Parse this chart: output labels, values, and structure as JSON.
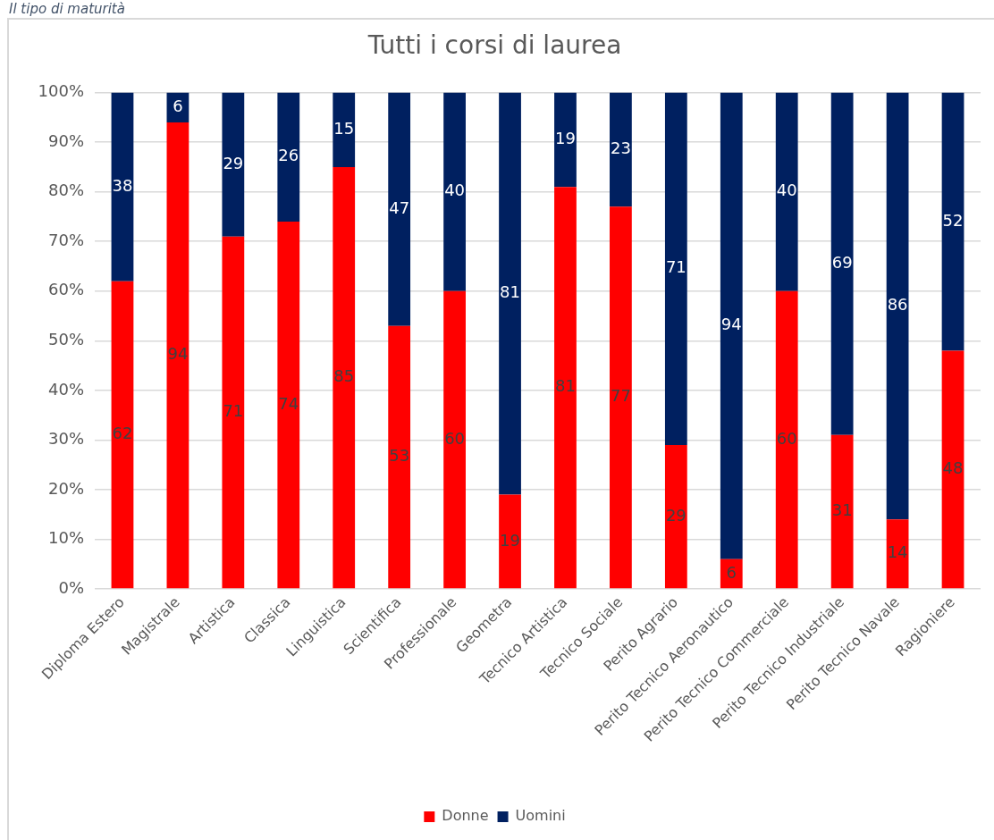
{
  "chart_data": {
    "type": "bar",
    "title": "Tutti i corsi di laurea",
    "annotations": [
      "Il tipo di maturità"
    ],
    "categories": [
      "Diploma Estero",
      "Magistrale",
      "Artistica",
      "Classica",
      "Linguistica",
      "Scientifica",
      "Professionale",
      "Geometra",
      "Tecnico Artistica",
      "Tecnico Sociale",
      "Perito Agrario",
      "Perito Tecnico Aeronautico",
      "Perito Tecnico Commerciale",
      "Perito Tecnico Industriale",
      "Perito Tecnico Navale",
      "Ragioniere"
    ],
    "series": [
      {
        "name": "Donne",
        "color": "#ff0000",
        "values": [
          62,
          94,
          71,
          74,
          85,
          53,
          60,
          19,
          81,
          77,
          29,
          6,
          60,
          31,
          14,
          48
        ]
      },
      {
        "name": "Uomini",
        "color": "#002060",
        "values": [
          38,
          6,
          29,
          26,
          15,
          47,
          40,
          81,
          19,
          23,
          71,
          94,
          40,
          69,
          86,
          52
        ]
      }
    ],
    "stacked": true,
    "ylim": [
      0,
      100
    ],
    "yticks": [
      {
        "value": 0,
        "label": "0%"
      },
      {
        "value": 10,
        "label": "10%"
      },
      {
        "value": 20,
        "label": "20%"
      },
      {
        "value": 30,
        "label": "30%"
      },
      {
        "value": 40,
        "label": "40%"
      },
      {
        "value": 50,
        "label": "50%"
      },
      {
        "value": 60,
        "label": "60%"
      },
      {
        "value": 70,
        "label": "70%"
      },
      {
        "value": 80,
        "label": "80%"
      },
      {
        "value": 90,
        "label": "90%"
      },
      {
        "value": 100,
        "label": "100%"
      }
    ],
    "grid": "y",
    "legend": "bottom",
    "data_labels": true
  }
}
